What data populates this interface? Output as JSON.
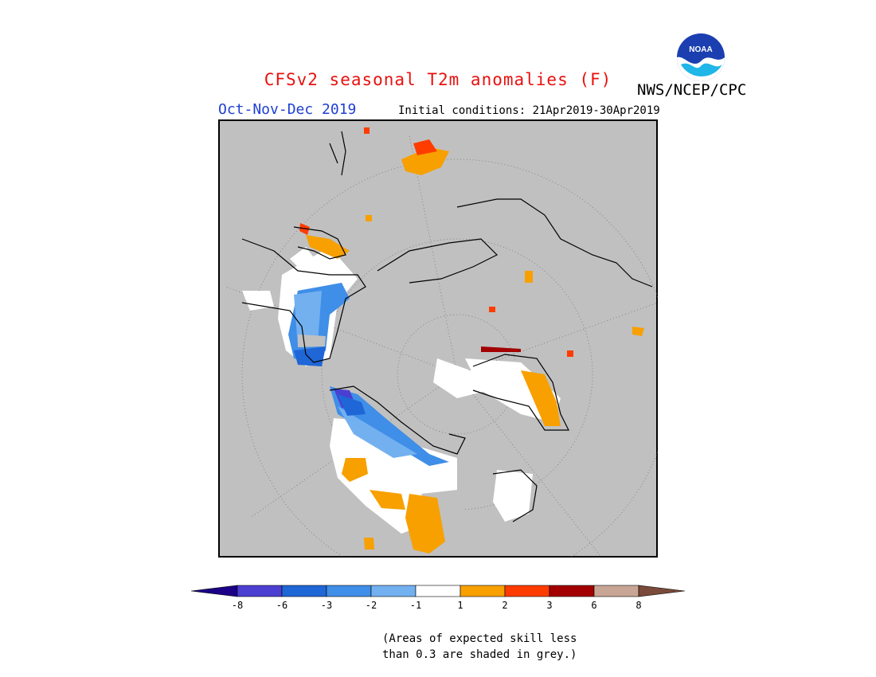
{
  "header": {
    "title": "CFSv2 seasonal T2m anomalies (F)",
    "agency": "NWS/NCEP/CPC",
    "season": "Oct-Nov-Dec 2019",
    "initial_conditions": "Initial conditions: 21Apr2019-30Apr2019",
    "logo_text": "NOAA"
  },
  "legend": {
    "colors": [
      "#1c0087",
      "#4b3fd1",
      "#1f66d6",
      "#3f8ee8",
      "#73b0f0",
      "#ffffff",
      "#f7a000",
      "#ff3c00",
      "#a30000",
      "#c9a596",
      "#7a4a3a"
    ],
    "ticks": [
      "-8",
      "-6",
      "-3",
      "-2",
      "-1",
      "1",
      "2",
      "3",
      "6",
      "8"
    ]
  },
  "map": {
    "background_color": "#c0c0c0",
    "coastline_color": "#000000"
  },
  "note": {
    "line1": "(Areas of expected skill less",
    "line2": "than 0.3 are shaded in grey.)"
  }
}
